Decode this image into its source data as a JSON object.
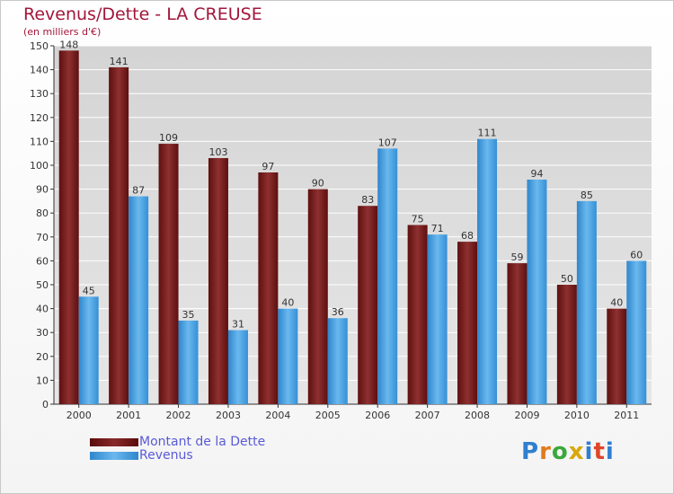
{
  "title": "Revenus/Dette - LA CREUSE",
  "subtitle": "(en milliers d'€)",
  "logo": {
    "text": "Proxiti",
    "colors": [
      "#2f7fd0",
      "#e07a1c",
      "#3aa83a",
      "#d8a80c",
      "#2f7fd0",
      "#e0452a",
      "#2f7fd0"
    ]
  },
  "colors": {
    "dette": "#7a1d1d",
    "revenus": "#4da6e8",
    "axis": "#333333",
    "grid": "#ffffff"
  },
  "chart_data": {
    "type": "bar",
    "title": "Revenus/Dette - LA CREUSE",
    "ylim": [
      0,
      150
    ],
    "yticks": [
      0,
      10,
      20,
      30,
      40,
      50,
      60,
      70,
      80,
      90,
      100,
      110,
      120,
      130,
      140,
      150
    ],
    "categories": [
      "2000",
      "2001",
      "2002",
      "2003",
      "2004",
      "2005",
      "2006",
      "2007",
      "2008",
      "2009",
      "2010",
      "2011"
    ],
    "series": [
      {
        "name": "Montant de la Dette",
        "values": [
          148,
          141,
          109,
          103,
          97,
          90,
          83,
          75,
          68,
          59,
          50,
          40
        ]
      },
      {
        "name": "Revenus",
        "values": [
          45,
          87,
          35,
          31,
          40,
          36,
          107,
          71,
          111,
          94,
          85,
          60
        ]
      }
    ],
    "legend_position": "bottom-left",
    "grid": true
  }
}
